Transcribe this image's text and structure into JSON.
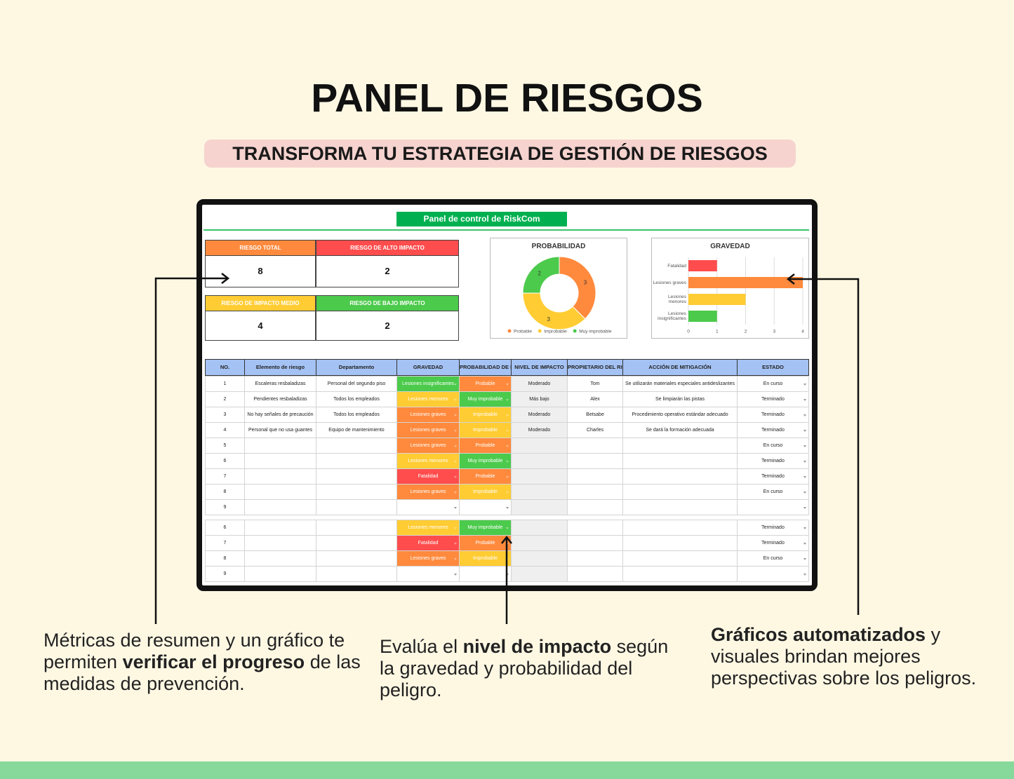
{
  "header": {
    "title": "PANEL DE RIESGOS",
    "subtitle": "TRANSFORMA TU ESTRATEGIA DE GESTIÓN DE RIESGOS"
  },
  "sheet": {
    "title": "Panel de control de RiskCom",
    "metrics": [
      {
        "label": "RIESGO TOTAL",
        "value": 8,
        "color": "#ff8a3d"
      },
      {
        "label": "RIESGO DE ALTO IMPACTO",
        "value": 2,
        "color": "#ff4d4d"
      },
      {
        "label": "RIESGO DE IMPACTO MEDIO",
        "value": 4,
        "color": "#ffcc33"
      },
      {
        "label": "RIESGO DE BAJO IMPACTO",
        "value": 2,
        "color": "#4cca4c"
      }
    ]
  },
  "chart_data": [
    {
      "type": "donut",
      "title": "PROBABILIDAD",
      "categories": [
        "Probable",
        "Improbable",
        "Muy improbable"
      ],
      "values": [
        3,
        3,
        2
      ],
      "colors": [
        "#ff8a3d",
        "#ffcc33",
        "#4cca4c"
      ],
      "legend": "bottom"
    },
    {
      "type": "hbar",
      "title": "GRAVEDAD",
      "categories": [
        "Fatalidad",
        "Lesiones graves",
        "Lesiones menores",
        "Lesiones insignificantes"
      ],
      "values": [
        1,
        4,
        2,
        1
      ],
      "colors": [
        "#ff4d4d",
        "#ff8a3d",
        "#ffcc33",
        "#4cca4c"
      ],
      "xlim": [
        0,
        4
      ],
      "xticks": [
        0,
        1,
        2,
        3,
        4
      ],
      "grid": true
    }
  ],
  "table": {
    "headers": [
      "NO.",
      "Elemento de riesgo",
      "Departamento",
      "GRAVEDAD",
      "PROBABILIDAD DE RIESGO",
      "NIVEL DE IMPACTO",
      "PROPIETARIO DEL RIESGO",
      "ACCIÓN DE MITIGACIÓN",
      "ESTADO"
    ],
    "blocks": [
      [
        [
          1,
          "Escaleras resbaladizas",
          "Personal del segundo piso",
          "Lesiones insignificantes",
          "Probable",
          "Moderado",
          "Tom",
          "Se utilizarán materiales especiales antideslizantes",
          "En curso"
        ],
        [
          2,
          "Pendientes resbaladizas",
          "Todos los empleados",
          "Lesiones menores",
          "Muy improbable",
          "Más bajo",
          "Alex",
          "Se limpiarán las pistas",
          "Terminado"
        ],
        [
          3,
          "No hay señales de precaución",
          "Todos los empleados",
          "Lesiones graves",
          "Improbable",
          "Moderado",
          "Betsabe",
          "Procedimiento operativo estándar adecuado",
          "Terminado"
        ],
        [
          4,
          "Personal que no usa guantes",
          "Equipo de mantenimiento",
          "Lesiones graves",
          "Improbable",
          "Moderado",
          "Charles",
          "Se dará la formación adecuada",
          "Terminado"
        ],
        [
          5,
          null,
          null,
          "Lesiones graves",
          "Probable",
          null,
          null,
          null,
          "En curso"
        ],
        [
          6,
          null,
          null,
          "Lesiones menores",
          "Muy improbable",
          null,
          null,
          null,
          "Terminado"
        ],
        [
          7,
          null,
          null,
          "Fatalidad",
          "Probable",
          null,
          null,
          null,
          "Terminado"
        ],
        [
          8,
          null,
          null,
          "Lesiones graves",
          "Improbable",
          null,
          null,
          null,
          "En curso"
        ],
        [
          9,
          null,
          null,
          null,
          null,
          null,
          null,
          null,
          null
        ]
      ],
      [
        [
          6,
          null,
          null,
          "Lesiones menores",
          "Muy improbable",
          null,
          null,
          null,
          "Terminado"
        ],
        [
          7,
          null,
          null,
          "Fatalidad",
          "Probable",
          null,
          null,
          null,
          "Terminado"
        ],
        [
          8,
          null,
          null,
          "Lesiones graves",
          "Improbable",
          null,
          null,
          null,
          "En curso"
        ],
        [
          9,
          null,
          null,
          null,
          null,
          null,
          null,
          null,
          null
        ]
      ]
    ]
  },
  "annotations": [
    [
      {
        "text": "Métricas de resumen y un gráfico te permiten ",
        "bold": false
      },
      {
        "text": "verificar el progreso",
        "bold": true
      },
      {
        "text": " de las medidas de prevención.",
        "bold": false
      }
    ],
    [
      {
        "text": "Evalúa el ",
        "bold": false
      },
      {
        "text": "nivel de impacto",
        "bold": true
      },
      {
        "text": " según la gravedad y probabilidad del peligro.",
        "bold": false
      }
    ],
    [
      {
        "text": "Gráficos automatizados",
        "bold": true
      },
      {
        "text": " y visuales brindan mejores perspectivas sobre los peligros.",
        "bold": false
      }
    ]
  ]
}
